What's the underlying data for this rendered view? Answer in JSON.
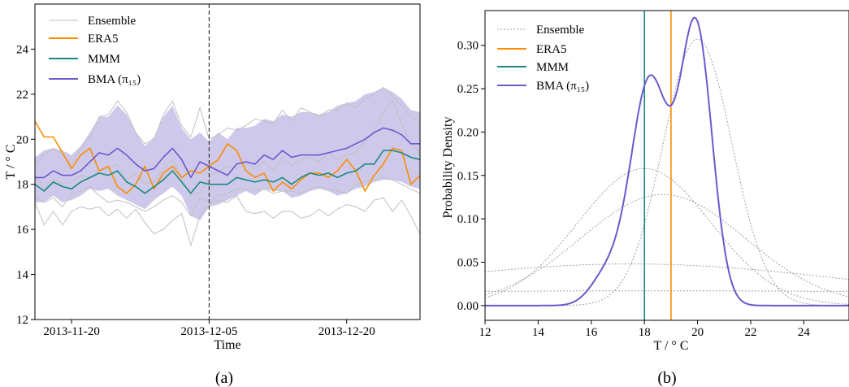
{
  "panels": [
    {
      "label": "(a)"
    },
    {
      "label": "(b)"
    }
  ],
  "chart_data": [
    {
      "type": "line",
      "xlabel": "Time",
      "ylabel": "T / ° C",
      "xlim": [
        "2013-11-16",
        "2013-12-28"
      ],
      "ylim": [
        12,
        26
      ],
      "x_ticks": [
        "2013-11-20",
        "2013-12-05",
        "2013-12-20"
      ],
      "y_ticks": [
        12,
        14,
        16,
        18,
        20,
        22,
        24
      ],
      "vline": "2013-12-05",
      "legend_position": "top-left",
      "grid": false,
      "x": [
        "2013-11-16",
        "2013-11-17",
        "2013-11-18",
        "2013-11-19",
        "2013-11-20",
        "2013-11-21",
        "2013-11-22",
        "2013-11-23",
        "2013-11-24",
        "2013-11-25",
        "2013-11-26",
        "2013-11-27",
        "2013-11-28",
        "2013-11-29",
        "2013-11-30",
        "2013-12-01",
        "2013-12-02",
        "2013-12-03",
        "2013-12-04",
        "2013-12-05",
        "2013-12-06",
        "2013-12-07",
        "2013-12-08",
        "2013-12-09",
        "2013-12-10",
        "2013-12-11",
        "2013-12-12",
        "2013-12-13",
        "2013-12-14",
        "2013-12-15",
        "2013-12-16",
        "2013-12-17",
        "2013-12-18",
        "2013-12-19",
        "2013-12-20",
        "2013-12-21",
        "2013-12-22",
        "2013-12-23",
        "2013-12-24",
        "2013-12-25",
        "2013-12-26",
        "2013-12-27",
        "2013-12-28"
      ],
      "series": [
        {
          "name": "ERA5",
          "color": "#ff8c00",
          "values": [
            20.8,
            20.1,
            20.1,
            19.4,
            18.7,
            19.3,
            19.6,
            18.6,
            18.8,
            17.9,
            17.6,
            18.0,
            18.8,
            17.8,
            18.5,
            18.8,
            18.3,
            18.6,
            18.5,
            18.8,
            19.1,
            19.8,
            19.5,
            18.6,
            18.3,
            18.5,
            17.7,
            18.1,
            17.8,
            18.2,
            18.5,
            18.5,
            18.3,
            18.6,
            19.1,
            18.6,
            17.7,
            18.4,
            18.9,
            19.6,
            19.5,
            18.0,
            18.4
          ]
        },
        {
          "name": "MMM",
          "color": "#1a8a80",
          "values": [
            18.0,
            17.7,
            18.1,
            17.9,
            17.8,
            18.1,
            18.3,
            18.5,
            18.4,
            18.6,
            18.1,
            17.9,
            17.6,
            17.9,
            18.2,
            18.6,
            18.1,
            17.6,
            18.1,
            18.0,
            18.0,
            18.0,
            18.3,
            18.2,
            18.1,
            18.2,
            18.1,
            18.3,
            18.0,
            18.3,
            18.5,
            18.4,
            18.5,
            18.3,
            18.5,
            18.6,
            18.9,
            18.9,
            19.5,
            19.5,
            19.4,
            19.2,
            19.1
          ]
        },
        {
          "name": "BMA (π₁₅)",
          "color": "#6a5acd",
          "values": [
            18.3,
            18.3,
            18.6,
            18.4,
            18.4,
            18.6,
            19.0,
            19.4,
            19.3,
            19.6,
            19.3,
            18.9,
            18.6,
            18.7,
            19.2,
            19.6,
            19.1,
            18.3,
            19.0,
            18.8,
            18.6,
            18.4,
            18.9,
            19.0,
            18.9,
            19.3,
            19.1,
            19.5,
            19.2,
            19.3,
            19.3,
            19.3,
            19.4,
            19.5,
            19.6,
            19.8,
            20.0,
            20.3,
            20.5,
            20.4,
            20.2,
            19.8,
            19.8
          ]
        },
        {
          "name": "BMA band lower",
          "values": [
            17.2,
            17.2,
            17.5,
            17.2,
            17.3,
            17.5,
            17.8,
            17.7,
            17.8,
            17.5,
            17.3,
            17.1,
            16.9,
            17.3,
            17.6,
            17.9,
            17.5,
            16.6,
            16.4,
            17.0,
            17.1,
            17.3,
            17.5,
            17.7,
            17.5,
            17.8,
            17.7,
            17.7,
            17.4,
            17.5,
            17.7,
            17.8,
            17.7,
            17.5,
            17.6,
            17.8,
            17.9,
            18.1,
            18.2,
            18.2,
            18.1,
            17.9,
            17.8
          ]
        },
        {
          "name": "BMA band upper",
          "values": [
            19.2,
            19.5,
            19.6,
            19.5,
            19.3,
            19.7,
            20.3,
            21.0,
            21.0,
            21.5,
            21.1,
            20.3,
            19.7,
            20.1,
            21.0,
            21.5,
            20.5,
            20.0,
            20.3,
            19.9,
            20.3,
            20.0,
            20.5,
            20.5,
            20.6,
            20.9,
            20.8,
            21.1,
            21.0,
            21.2,
            21.2,
            21.1,
            21.2,
            21.5,
            21.6,
            21.7,
            22.0,
            22.1,
            22.3,
            22.1,
            21.8,
            21.3,
            21.2
          ]
        },
        {
          "name": "Ensemble",
          "color": "#c0c0c0",
          "values": [
            17.2,
            16.2,
            16.8,
            16.2,
            16.8,
            17.0,
            16.9,
            17.0,
            16.6,
            16.9,
            16.5,
            16.9,
            16.3,
            15.8,
            16.0,
            16.4,
            16.7,
            15.3,
            16.6,
            17.1,
            17.3,
            17.2,
            17.5,
            16.8,
            16.7,
            16.8,
            16.5,
            16.8,
            16.8,
            16.5,
            16.6,
            16.9,
            16.6,
            16.9,
            17.1,
            17.0,
            16.8,
            17.3,
            17.4,
            16.8,
            17.3,
            16.6,
            15.8
          ]
        },
        {
          "name": "Ensemble",
          "color": "#c0c0c0",
          "values": [
            18.9,
            19.3,
            19.6,
            19.3,
            18.9,
            19.6,
            20.1,
            21.0,
            21.1,
            21.7,
            21.2,
            20.3,
            19.8,
            20.0,
            21.1,
            21.7,
            20.6,
            20.1,
            21.4,
            20.0,
            20.2,
            20.5,
            20.4,
            20.6,
            20.9,
            20.8,
            20.7,
            21.3,
            20.8,
            21.4,
            21.2,
            21.0,
            21.3,
            21.3,
            21.6,
            21.4,
            21.8,
            22.0,
            22.3,
            21.9,
            21.5,
            21.0,
            20.8
          ]
        },
        {
          "name": "Ensemble",
          "color": "#c0c0c0",
          "values": [
            18.4,
            17.8,
            18.2,
            18.0,
            18.1,
            18.4,
            18.3,
            18.6,
            18.7,
            18.9,
            18.2,
            18.5,
            18.0,
            18.1,
            18.7,
            19.1,
            18.3,
            17.5,
            17.6,
            18.3,
            18.6,
            18.8,
            18.7,
            18.9,
            18.7,
            19.0,
            18.6,
            19.2,
            18.8,
            19.1,
            19.2,
            19.0,
            19.4,
            19.1,
            19.3,
            19.4,
            19.9,
            20.4,
            21.2,
            21.7,
            20.7,
            19.8,
            19.4
          ]
        },
        {
          "name": "Ensemble",
          "color": "#c0c0c0",
          "values": [
            17.5,
            17.2,
            17.4,
            17.0,
            17.6,
            17.7,
            17.9,
            17.5,
            17.2,
            17.3,
            17.2,
            17.0,
            16.8,
            17.0,
            17.3,
            17.5,
            17.2,
            16.6,
            17.4,
            17.2,
            17.5,
            17.6,
            17.8,
            17.8,
            17.7,
            17.8,
            17.6,
            17.7,
            17.7,
            17.6,
            17.8,
            17.9,
            17.8,
            17.7,
            17.6,
            18.0,
            18.1,
            18.2,
            18.3,
            18.2,
            18.0,
            17.8,
            17.6
          ]
        }
      ]
    },
    {
      "type": "line",
      "xlabel": "T / ° C",
      "ylabel": "Probability Density",
      "xlim": [
        12,
        25.7
      ],
      "ylim": [
        -0.017,
        0.34
      ],
      "x_ticks": [
        12,
        14,
        16,
        18,
        20,
        22,
        24
      ],
      "y_ticks": [
        0.0,
        0.05,
        0.1,
        0.15,
        0.2,
        0.25,
        0.3
      ],
      "y_tick_labels": [
        "0.00",
        "0.05",
        "0.10",
        "0.15",
        "0.20",
        "0.25",
        "0.30"
      ],
      "legend_position": "top-left",
      "grid": false,
      "vlines": [
        {
          "name": "ERA5",
          "x": 19.0,
          "color": "#ff8c00"
        },
        {
          "name": "MMM",
          "x": 18.0,
          "color": "#1a8a80"
        }
      ],
      "ensemble_gaussians": [
        {
          "mean": 18.0,
          "sd": 2.5,
          "peak": 0.158
        },
        {
          "mean": 18.7,
          "sd": 3.1,
          "peak": 0.128
        },
        {
          "mean": 20.0,
          "sd": 1.3,
          "peak": 0.307
        },
        {
          "mean": 17.5,
          "sd": 8.5,
          "peak": 0.048
        },
        {
          "mean": 18.5,
          "sd": 25.0,
          "peak": 0.017
        }
      ],
      "bma_components": [
        {
          "mean": 18.2,
          "sd": 0.72,
          "peak": 0.26
        },
        {
          "mean": 19.95,
          "sd": 0.6,
          "peak": 0.317
        },
        {
          "mean": 16.55,
          "sd": 0.6,
          "peak": 0.032
        }
      ],
      "series": [
        {
          "name": "Ensemble",
          "color": "#a0a0a0"
        },
        {
          "name": "ERA5",
          "color": "#ff8c00"
        },
        {
          "name": "MMM",
          "color": "#1a8a80"
        },
        {
          "name": "BMA (π₁₅)",
          "color": "#6a5acd"
        }
      ]
    }
  ],
  "colors": {
    "era5": "#ff8c00",
    "mmm": "#1a8a80",
    "bma": "#6a5acd",
    "band": "#c6bfe8",
    "ensemble": "#c0c0c0"
  }
}
